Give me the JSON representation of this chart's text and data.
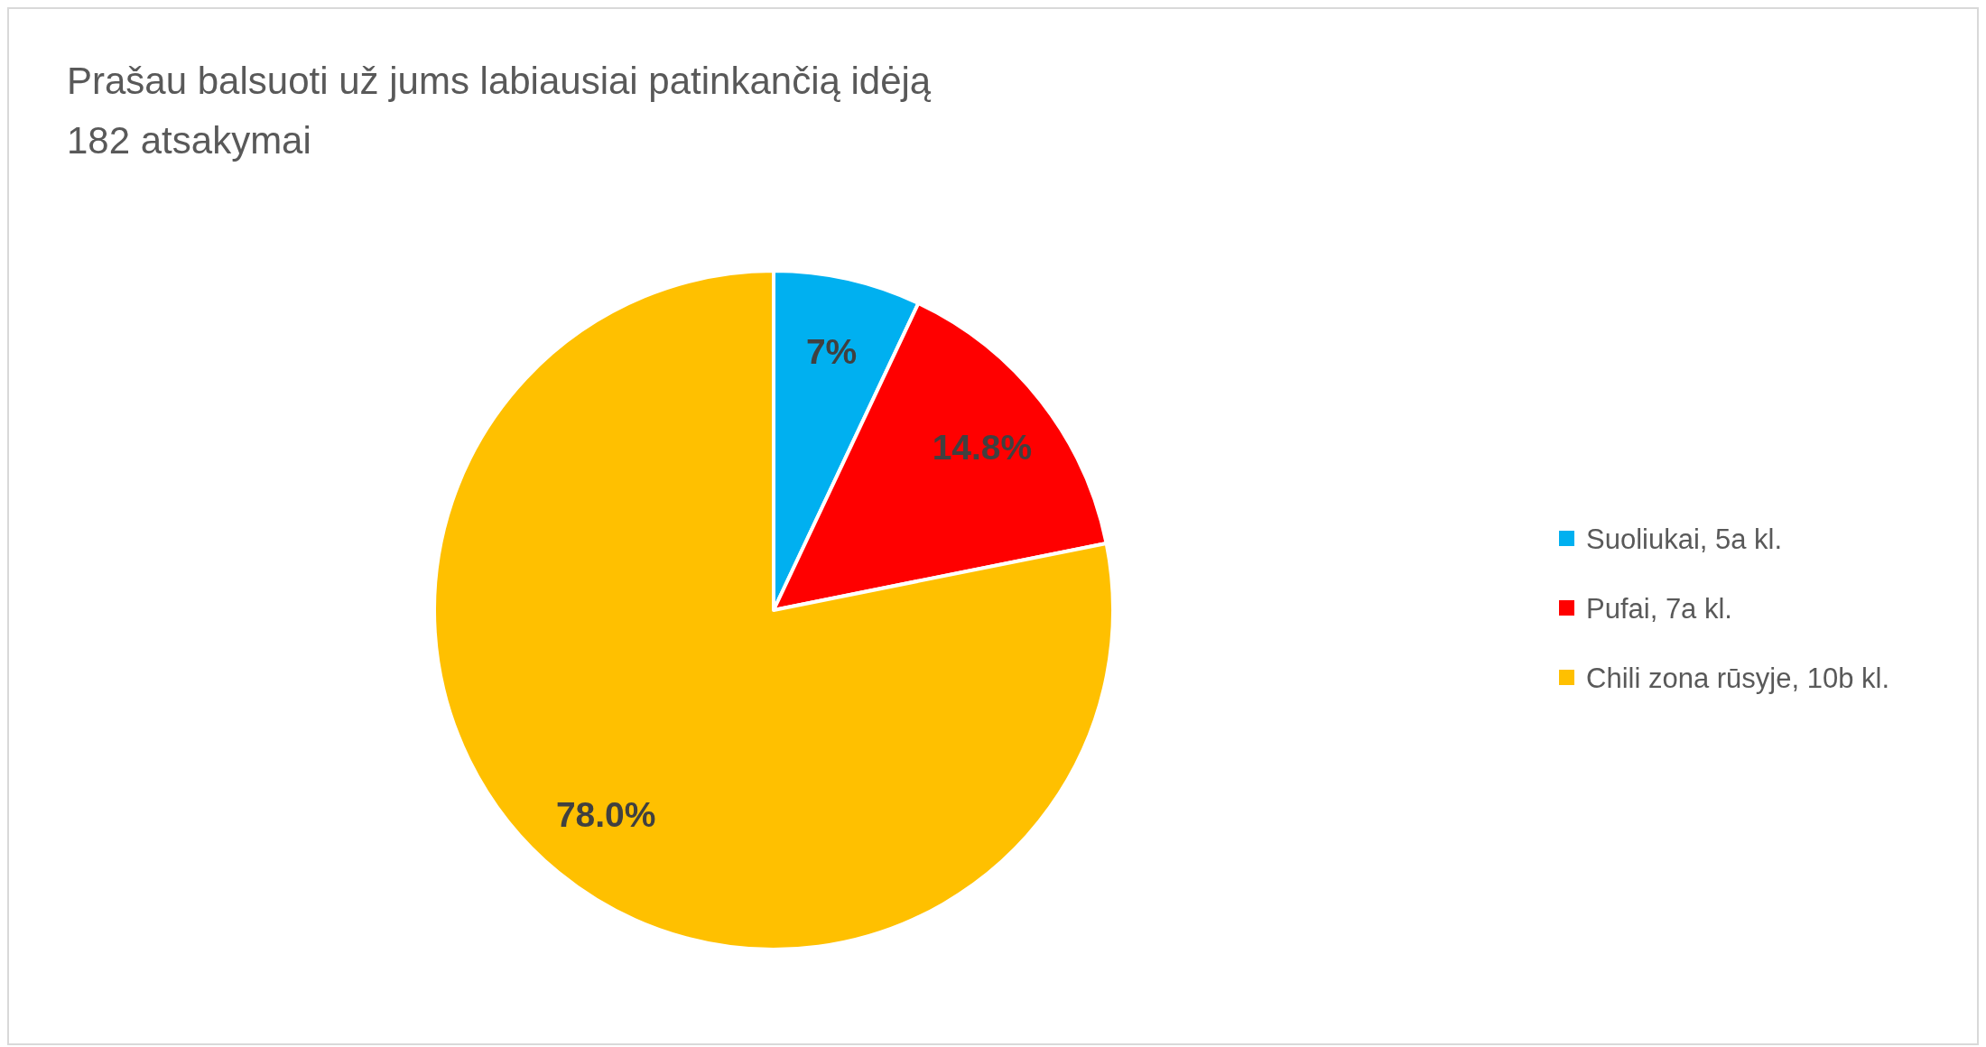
{
  "chart_data": {
    "type": "pie",
    "title": "Prašau balsuoti už jums labiausiai patinkančią idėją",
    "subtitle": "182 atsakymai",
    "categories": [
      "Suoliukai, 5a kl.",
      "Pufai, 7a kl.",
      "Chili zona rūsyje, 10b kl."
    ],
    "values": [
      7,
      14.8,
      78.0
    ],
    "value_labels": [
      "7%",
      "14.8%",
      "78.0%"
    ],
    "colors": [
      "#00b0f0",
      "#ff0000",
      "#ffc000"
    ],
    "legend": "right"
  }
}
